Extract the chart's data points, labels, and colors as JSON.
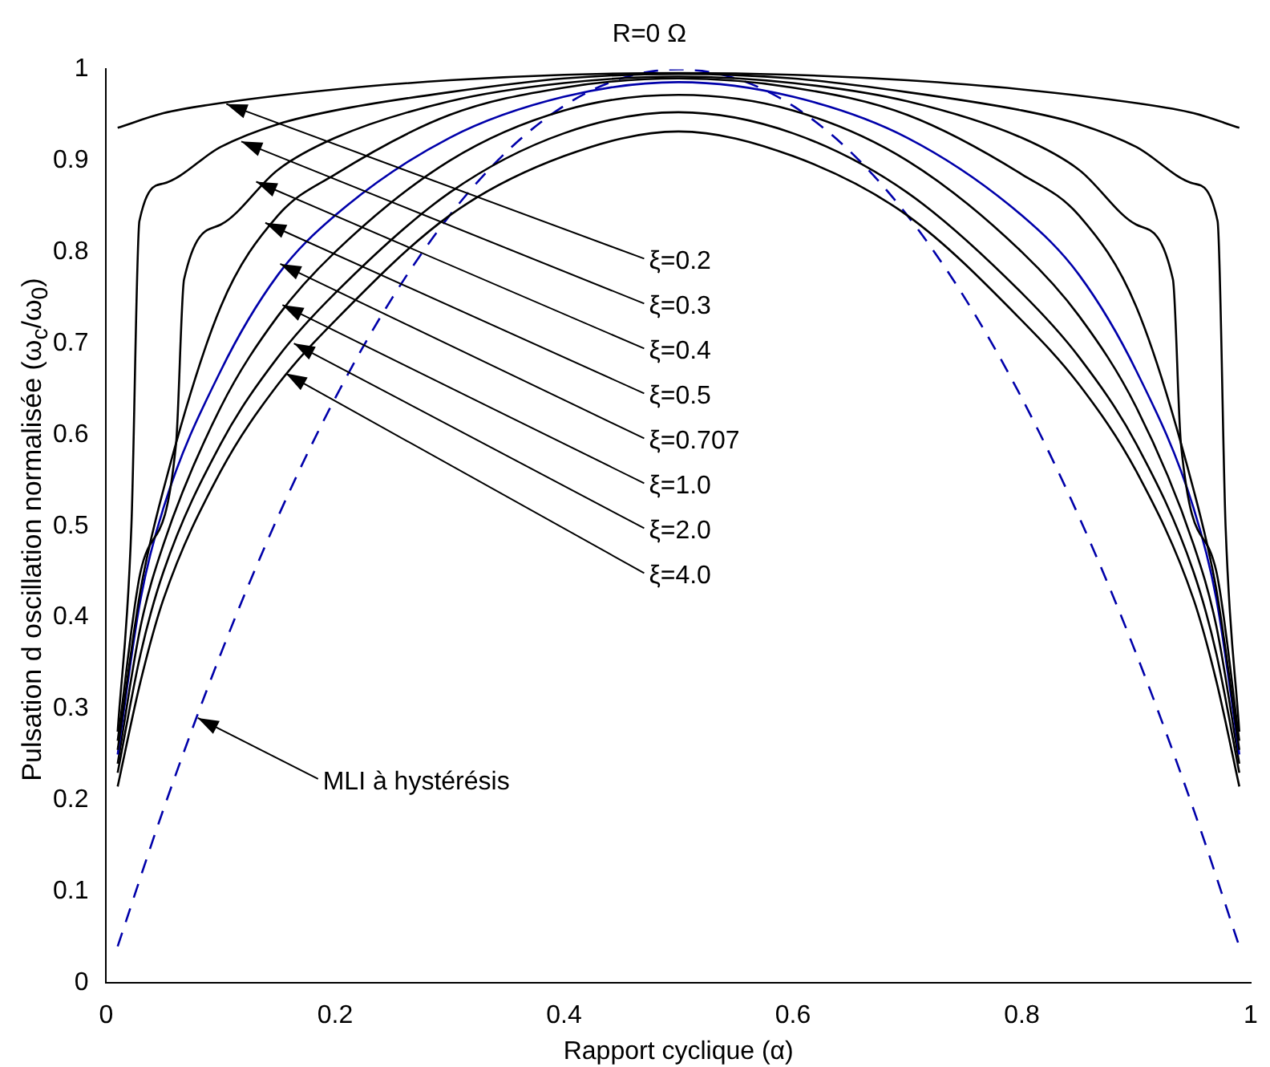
{
  "chart_data": {
    "type": "line",
    "title": "R=0 Ω",
    "xlabel": "Rapport cyclique (α)",
    "ylabel": "Pulsation d oscillation normalisée (ω$_{c}$/ω$_{0}$)",
    "xlim": [
      0,
      1
    ],
    "ylim": [
      0,
      1
    ],
    "xticks": [
      0,
      0.2,
      0.4,
      0.6,
      0.8,
      1
    ],
    "yticks": [
      0,
      0.1,
      0.2,
      0.3,
      0.4,
      0.5,
      0.6,
      0.7,
      0.8,
      0.9,
      1
    ],
    "grid": false,
    "legend": false,
    "marker": "none",
    "series": [
      {
        "color": "#000000",
        "line_style": "solid",
        "x": [
          0.01,
          0.05,
          0.1,
          0.2,
          0.3,
          0.4,
          0.5,
          0.6,
          0.7,
          0.8,
          0.9,
          0.95,
          0.99
        ],
        "values": [
          0.936,
          0.952,
          0.963,
          0.978,
          0.988,
          0.994,
          0.996,
          0.994,
          0.988,
          0.978,
          0.963,
          0.952,
          0.936
        ]
      },
      {
        "color": "#000000",
        "line_style": "solid",
        "x": [
          0.01,
          0.022,
          0.029,
          0.05,
          0.1,
          0.15,
          0.2,
          0.3,
          0.4,
          0.5,
          0.6,
          0.7,
          0.8,
          0.85,
          0.9,
          0.95,
          0.971,
          0.978,
          0.99
        ],
        "values": [
          0.275,
          0.5,
          0.834,
          0.875,
          0.915,
          0.94,
          0.955,
          0.975,
          0.99,
          0.995,
          0.99,
          0.975,
          0.955,
          0.94,
          0.915,
          0.875,
          0.834,
          0.5,
          0.275
        ]
      },
      {
        "color": "#000000",
        "line_style": "solid",
        "x": [
          0.01,
          0.03,
          0.061,
          0.068,
          0.1,
          0.15,
          0.2,
          0.3,
          0.4,
          0.5,
          0.6,
          0.7,
          0.8,
          0.85,
          0.9,
          0.932,
          0.939,
          0.97,
          0.99
        ],
        "values": [
          0.265,
          0.45,
          0.59,
          0.77,
          0.83,
          0.89,
          0.925,
          0.965,
          0.985,
          0.992,
          0.985,
          0.965,
          0.925,
          0.89,
          0.83,
          0.77,
          0.59,
          0.45,
          0.265
        ]
      },
      {
        "color": "#000000",
        "line_style": "solid",
        "x": [
          0.01,
          0.03,
          0.05,
          0.1,
          0.15,
          0.2,
          0.3,
          0.4,
          0.5,
          0.6,
          0.7,
          0.8,
          0.85,
          0.9,
          0.95,
          0.97,
          0.99
        ],
        "values": [
          0.255,
          0.43,
          0.54,
          0.74,
          0.84,
          0.885,
          0.95,
          0.98,
          0.99,
          0.98,
          0.95,
          0.885,
          0.84,
          0.74,
          0.54,
          0.43,
          0.255
        ]
      },
      {
        "color": "#0000aa",
        "line_style": "solid",
        "x": [
          0.01,
          0.03,
          0.05,
          0.1,
          0.15,
          0.2,
          0.3,
          0.4,
          0.5,
          0.6,
          0.7,
          0.8,
          0.85,
          0.9,
          0.95,
          0.97,
          0.99
        ],
        "values": [
          0.25,
          0.42,
          0.52,
          0.67,
          0.775,
          0.84,
          0.925,
          0.97,
          0.986,
          0.97,
          0.925,
          0.84,
          0.775,
          0.67,
          0.52,
          0.42,
          0.25
        ]
      },
      {
        "color": "#000000",
        "line_style": "solid",
        "x": [
          0.01,
          0.03,
          0.05,
          0.1,
          0.15,
          0.2,
          0.3,
          0.4,
          0.5,
          0.6,
          0.7,
          0.8,
          0.85,
          0.9,
          0.95,
          0.97,
          0.99
        ],
        "values": [
          0.24,
          0.39,
          0.48,
          0.63,
          0.73,
          0.8,
          0.9,
          0.955,
          0.972,
          0.955,
          0.9,
          0.8,
          0.73,
          0.63,
          0.48,
          0.39,
          0.24
        ]
      },
      {
        "color": "#000000",
        "line_style": "solid",
        "x": [
          0.01,
          0.03,
          0.05,
          0.1,
          0.15,
          0.2,
          0.3,
          0.4,
          0.5,
          0.6,
          0.7,
          0.8,
          0.85,
          0.9,
          0.95,
          0.97,
          0.99
        ],
        "values": [
          0.23,
          0.36,
          0.45,
          0.59,
          0.685,
          0.755,
          0.865,
          0.93,
          0.953,
          0.93,
          0.865,
          0.755,
          0.685,
          0.59,
          0.45,
          0.36,
          0.23
        ]
      },
      {
        "color": "#000000",
        "line_style": "solid",
        "x": [
          0.01,
          0.03,
          0.05,
          0.1,
          0.15,
          0.2,
          0.3,
          0.4,
          0.5,
          0.6,
          0.7,
          0.8,
          0.85,
          0.9,
          0.95,
          0.97,
          0.99
        ],
        "values": [
          0.215,
          0.33,
          0.42,
          0.56,
          0.655,
          0.725,
          0.84,
          0.905,
          0.932,
          0.905,
          0.84,
          0.725,
          0.655,
          0.56,
          0.42,
          0.33,
          0.215
        ]
      },
      {
        "color": "#0000aa",
        "line_style": "dashed",
        "x": [
          0.01,
          0.05,
          0.1,
          0.15,
          0.2,
          0.25,
          0.3,
          0.35,
          0.4,
          0.45,
          0.5,
          0.55,
          0.6,
          0.65,
          0.7,
          0.75,
          0.8,
          0.85,
          0.9,
          0.95,
          0.99
        ],
        "values": [
          0.04,
          0.19,
          0.36,
          0.51,
          0.64,
          0.75,
          0.84,
          0.91,
          0.96,
          0.99,
          1.0,
          0.99,
          0.96,
          0.91,
          0.84,
          0.75,
          0.64,
          0.51,
          0.36,
          0.19,
          0.04
        ]
      }
    ],
    "annotations": [
      {
        "text": "ξ=0.2",
        "x": 0.105,
        "y": 0.962
      },
      {
        "text": "ξ=0.3",
        "x": 0.118,
        "y": 0.921
      },
      {
        "text": "ξ=0.4",
        "x": 0.131,
        "y": 0.877
      },
      {
        "text": "ξ=0.5",
        "x": 0.139,
        "y": 0.832
      },
      {
        "text": "ξ=0.707",
        "x": 0.152,
        "y": 0.787
      },
      {
        "text": "ξ=1.0",
        "x": 0.154,
        "y": 0.742
      },
      {
        "text": "ξ=2.0",
        "x": 0.164,
        "y": 0.7
      },
      {
        "text": "ξ=4.0",
        "x": 0.157,
        "y": 0.667
      },
      {
        "text": "MLI à hystérésis",
        "x": 0.08,
        "y": 0.29
      }
    ]
  }
}
